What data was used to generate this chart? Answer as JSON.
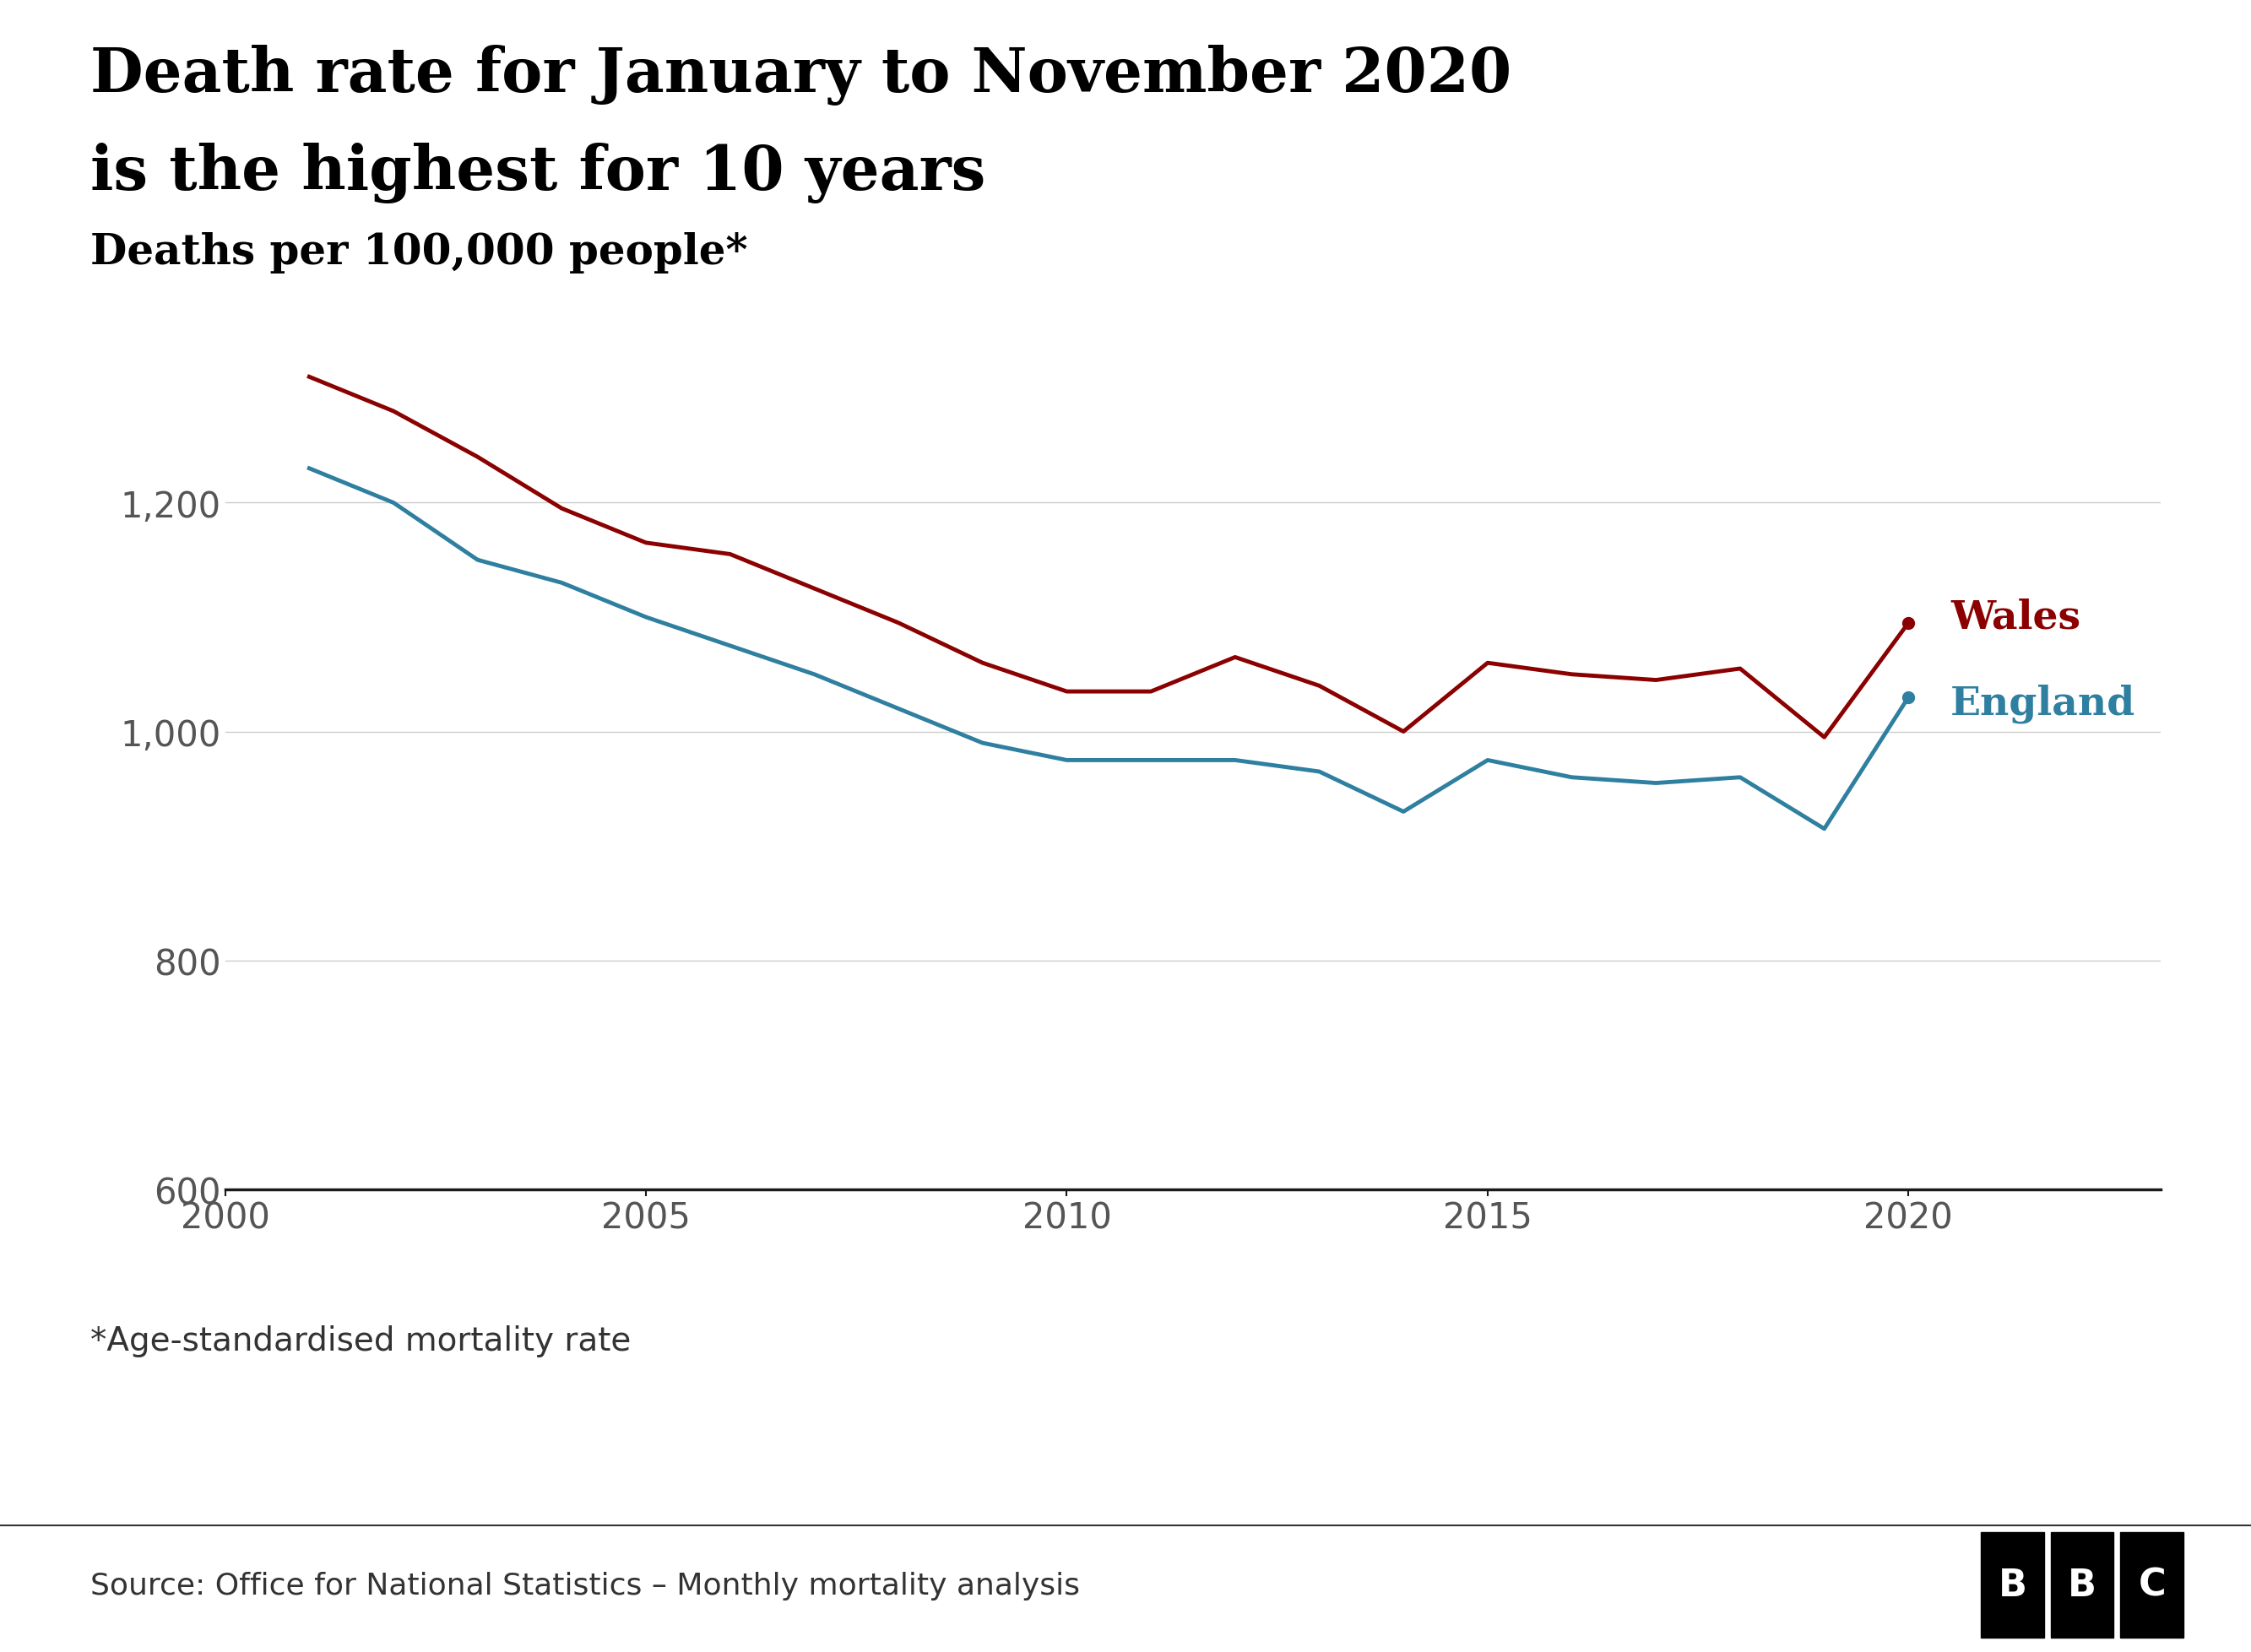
{
  "title_line1": "Death rate for January to November 2020",
  "title_line2": "is the highest for 10 years",
  "subtitle": "Deaths per 100,000 people*",
  "footnote": "*Age-standardised mortality rate",
  "source": "Source: Office for National Statistics – Monthly mortality analysis",
  "wales_color": "#8B0000",
  "england_color": "#2E7FA0",
  "background_color": "#FFFFFF",
  "grid_color": "#CCCCCC",
  "axis_color": "#555555",
  "title_color": "#000000",
  "subtitle_color": "#000000",
  "wales_years": [
    2001,
    2002,
    2003,
    2004,
    2005,
    2006,
    2007,
    2008,
    2009,
    2010,
    2011,
    2012,
    2013,
    2014,
    2015,
    2016,
    2017,
    2018,
    2019,
    2020
  ],
  "wales_values": [
    1310,
    1280,
    1240,
    1195,
    1165,
    1155,
    1125,
    1095,
    1060,
    1035,
    1035,
    1065,
    1040,
    1000,
    1060,
    1050,
    1045,
    1055,
    995,
    1095
  ],
  "england_years": [
    2001,
    2002,
    2003,
    2004,
    2005,
    2006,
    2007,
    2008,
    2009,
    2010,
    2011,
    2012,
    2013,
    2014,
    2015,
    2016,
    2017,
    2018,
    2019,
    2020
  ],
  "england_values": [
    1230,
    1200,
    1150,
    1130,
    1100,
    1075,
    1050,
    1020,
    990,
    975,
    975,
    975,
    965,
    930,
    975,
    960,
    955,
    960,
    915,
    1030
  ],
  "yticks": [
    600,
    800,
    1000,
    1200
  ],
  "ytick_labels": [
    "600",
    "800",
    "1,000",
    "1,200"
  ],
  "xticks": [
    2000,
    2005,
    2010,
    2015,
    2020
  ],
  "xlim": [
    2000,
    2023
  ],
  "ylim": [
    600,
    1380
  ]
}
